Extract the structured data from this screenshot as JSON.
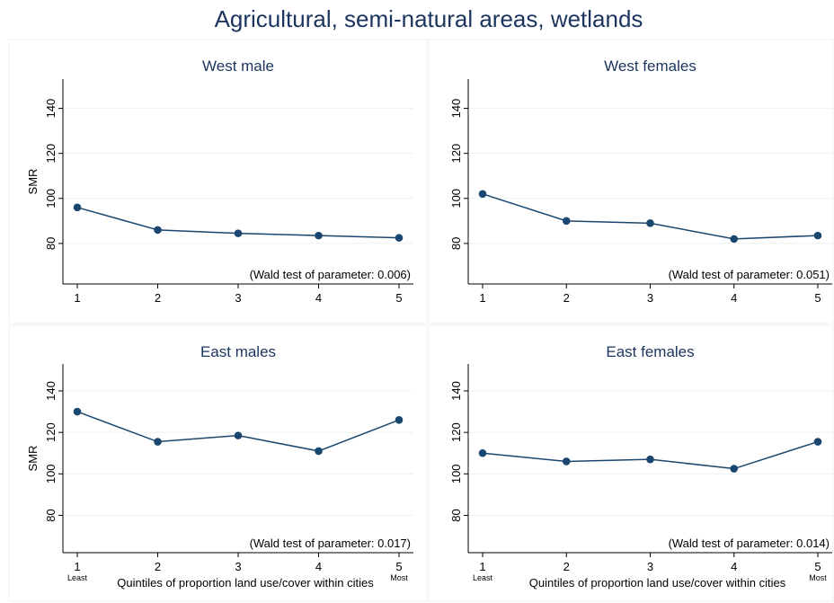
{
  "title": "Agricultural, semi-natural areas, wetlands",
  "chart_data": [
    {
      "type": "line",
      "title": "West male",
      "x": [
        1,
        2,
        3,
        4,
        5
      ],
      "x_tick_labels": [
        "1",
        "2",
        "3",
        "4",
        "5"
      ],
      "series": [
        {
          "values": [
            96,
            86,
            84.5,
            83.5,
            82.5
          ]
        }
      ],
      "ylabel": "SMR",
      "xlabel": "",
      "y_ticks": [
        80,
        100,
        120,
        140
      ],
      "ylim": [
        62,
        153
      ],
      "annotation": "(Wald test of parameter: 0.006)",
      "grid": true
    },
    {
      "type": "line",
      "title": "West females",
      "x": [
        1,
        2,
        3,
        4,
        5
      ],
      "x_tick_labels": [
        "1",
        "2",
        "3",
        "4",
        "5"
      ],
      "series": [
        {
          "values": [
            102,
            90,
            89,
            82,
            83.5
          ]
        }
      ],
      "ylabel": "",
      "xlabel": "",
      "y_ticks": [
        80,
        100,
        120,
        140
      ],
      "ylim": [
        62,
        153
      ],
      "annotation": "(Wald test of parameter: 0.051)",
      "grid": true
    },
    {
      "type": "line",
      "title": "East males",
      "x": [
        1,
        2,
        3,
        4,
        5
      ],
      "x_tick_labels": [
        "1",
        "2",
        "3",
        "4",
        "5"
      ],
      "x_sub_labels": [
        "Least",
        "",
        "",
        "",
        "Most"
      ],
      "series": [
        {
          "values": [
            130,
            115.5,
            118.5,
            111,
            126
          ]
        }
      ],
      "ylabel": "SMR",
      "xlabel": "Quintiles of proportion land use/cover within cities",
      "y_ticks": [
        80,
        100,
        120,
        140
      ],
      "ylim": [
        62,
        153
      ],
      "annotation": "(Wald test of parameter: 0.017)",
      "grid": true
    },
    {
      "type": "line",
      "title": "East females",
      "x": [
        1,
        2,
        3,
        4,
        5
      ],
      "x_tick_labels": [
        "1",
        "2",
        "3",
        "4",
        "5"
      ],
      "x_sub_labels": [
        "Least",
        "",
        "",
        "",
        "Most"
      ],
      "series": [
        {
          "values": [
            110,
            106,
            107,
            102.5,
            115.5
          ]
        }
      ],
      "ylabel": "",
      "xlabel": "Quintiles of proportion land use/cover within cities",
      "y_ticks": [
        80,
        100,
        120,
        140
      ],
      "ylim": [
        62,
        153
      ],
      "annotation": "(Wald test of parameter: 0.014)",
      "grid": true
    }
  ]
}
